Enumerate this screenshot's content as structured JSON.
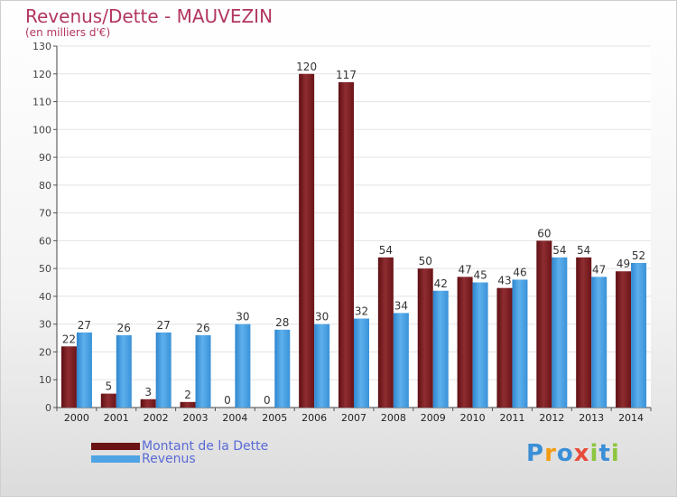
{
  "chart_data": {
    "type": "bar",
    "title": "Revenus/Dette - MAUVEZIN",
    "subtitle": "(en milliers d'€)",
    "xlabel": "",
    "ylabel": "",
    "ylim": [
      0,
      130
    ],
    "yticks": [
      0,
      10,
      20,
      30,
      40,
      50,
      60,
      70,
      80,
      90,
      100,
      110,
      120,
      130
    ],
    "grid": true,
    "legend_position": "bottom-left",
    "categories": [
      "2000",
      "2001",
      "2002",
      "2003",
      "2004",
      "2005",
      "2006",
      "2007",
      "2008",
      "2009",
      "2010",
      "2011",
      "2012",
      "2013",
      "2014"
    ],
    "series": [
      {
        "name": "Montant de la Dette",
        "color": "#8b2a2e",
        "values": [
          22,
          5,
          3,
          2,
          0,
          0,
          120,
          117,
          54,
          50,
          47,
          43,
          60,
          54,
          49
        ]
      },
      {
        "name": "Revenus",
        "color": "#4fa3e3",
        "values": [
          27,
          26,
          27,
          26,
          30,
          28,
          30,
          32,
          34,
          42,
          45,
          46,
          54,
          47,
          52
        ]
      }
    ]
  },
  "legend": {
    "items": [
      {
        "label": "Montant de la Dette",
        "color": "#6b1216"
      },
      {
        "label": "Revenus",
        "color": "#4fa3e3"
      }
    ]
  },
  "logo": {
    "letters": [
      {
        "char": "P",
        "color": "#3a8fd6"
      },
      {
        "char": "r",
        "color": "#f39c12"
      },
      {
        "char": "o",
        "color": "#3a8fd6"
      },
      {
        "char": "x",
        "color": "#e74c3c"
      },
      {
        "char": "i",
        "color": "#8dc63f"
      },
      {
        "char": "t",
        "color": "#3a8fd6"
      },
      {
        "char": "i",
        "color": "#8dc63f"
      }
    ]
  }
}
